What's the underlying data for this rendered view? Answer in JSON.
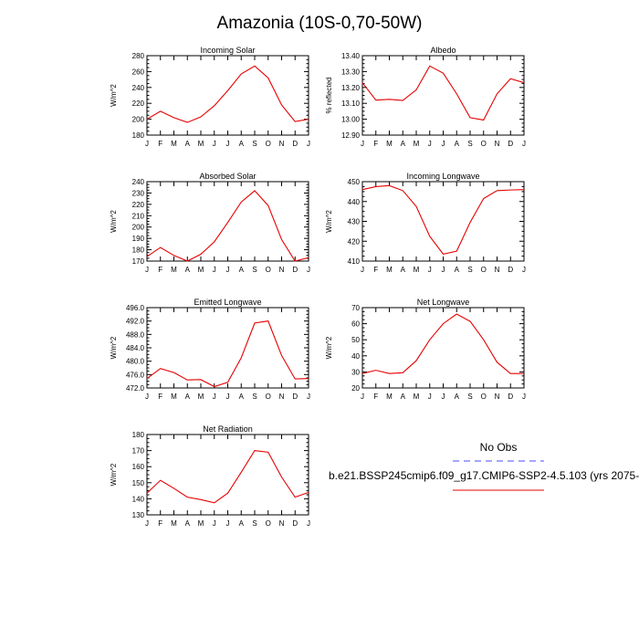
{
  "page": {
    "title": "Amazonia (10S-0,70-50W)"
  },
  "legend": {
    "title": "No Obs",
    "case_label": "b.e21.BSSP245cmip6.f09_g17.CMIP6-SSP2-4.5.103 (yrs 2075-",
    "obs_color": "#4b4bff",
    "model_color": "#e60000"
  },
  "chart_data": [
    {
      "type": "line",
      "title": "Incoming Solar",
      "ylabel": "W/m^2",
      "xlabel": "",
      "x": [
        "J",
        "F",
        "M",
        "A",
        "M",
        "J",
        "J",
        "A",
        "S",
        "O",
        "N",
        "D",
        "J"
      ],
      "ylim": [
        180,
        280
      ],
      "yticks": [
        180,
        200,
        220,
        240,
        260,
        280
      ],
      "ytick_labels": [
        "180",
        "200",
        "220",
        "240",
        "260",
        "280"
      ],
      "series": [
        {
          "values": [
            200,
            210,
            202,
            196,
            203,
            217,
            236,
            257,
            267,
            252,
            218,
            197,
            200
          ]
        }
      ]
    },
    {
      "type": "line",
      "title": "Albedo",
      "ylabel": "% reflected",
      "xlabel": "",
      "x": [
        "J",
        "F",
        "M",
        "A",
        "M",
        "J",
        "J",
        "A",
        "S",
        "O",
        "N",
        "D",
        "J"
      ],
      "ylim": [
        12.9,
        13.4
      ],
      "yticks": [
        12.9,
        13.0,
        13.1,
        13.2,
        13.3,
        13.4
      ],
      "ytick_labels": [
        "12.90",
        "13.00",
        "13.10",
        "13.20",
        "13.30",
        "13.40"
      ],
      "series": [
        {
          "values": [
            13.23,
            13.12,
            13.125,
            13.118,
            13.185,
            13.335,
            13.29,
            13.16,
            13.01,
            12.995,
            13.16,
            13.255,
            13.23
          ]
        }
      ]
    },
    {
      "type": "line",
      "title": "Absorbed Solar",
      "ylabel": "W/m^2",
      "xlabel": "",
      "x": [
        "J",
        "F",
        "M",
        "A",
        "M",
        "J",
        "J",
        "A",
        "S",
        "O",
        "N",
        "D",
        "J"
      ],
      "ylim": [
        170,
        240
      ],
      "yticks": [
        170,
        180,
        190,
        200,
        210,
        220,
        230,
        240
      ],
      "ytick_labels": [
        "170",
        "180",
        "190",
        "200",
        "210",
        "220",
        "230",
        "240"
      ],
      "series": [
        {
          "values": [
            174,
            182,
            175,
            170,
            176,
            187,
            204,
            222,
            232,
            219,
            189,
            170,
            173
          ]
        }
      ]
    },
    {
      "type": "line",
      "title": "Incoming Longwave",
      "ylabel": "W/m^2",
      "xlabel": "",
      "x": [
        "J",
        "F",
        "M",
        "A",
        "M",
        "J",
        "J",
        "A",
        "S",
        "O",
        "N",
        "D",
        "J"
      ],
      "ylim": [
        410,
        450
      ],
      "yticks": [
        410,
        420,
        430,
        440,
        450
      ],
      "ytick_labels": [
        "410",
        "420",
        "430",
        "440",
        "450"
      ],
      "series": [
        {
          "values": [
            446,
            447.5,
            448,
            445.5,
            437.5,
            422.5,
            413.5,
            415,
            429.5,
            441.5,
            445.5,
            445.8,
            446
          ]
        }
      ]
    },
    {
      "type": "line",
      "title": "Emitted Longwave",
      "ylabel": "W/m^2",
      "xlabel": "",
      "x": [
        "J",
        "F",
        "M",
        "A",
        "M",
        "J",
        "J",
        "A",
        "S",
        "O",
        "N",
        "D",
        "J"
      ],
      "ylim": [
        472,
        496
      ],
      "yticks": [
        472,
        476,
        480,
        484,
        488,
        492,
        496
      ],
      "ytick_labels": [
        "472.0",
        "476.0",
        "480.0",
        "484.0",
        "488.0",
        "492.0",
        "496.0"
      ],
      "series": [
        {
          "values": [
            474.8,
            477.8,
            476.6,
            474.4,
            474.5,
            472.4,
            473.7,
            481,
            491.4,
            492,
            481.7,
            474.7,
            474.8
          ]
        }
      ]
    },
    {
      "type": "line",
      "title": "Net Longwave",
      "ylabel": "W/m^2",
      "xlabel": "",
      "x": [
        "J",
        "F",
        "M",
        "A",
        "M",
        "J",
        "J",
        "A",
        "S",
        "O",
        "N",
        "D",
        "J"
      ],
      "ylim": [
        20,
        70
      ],
      "yticks": [
        20,
        30,
        40,
        50,
        60,
        70
      ],
      "ytick_labels": [
        "20",
        "30",
        "40",
        "50",
        "60",
        "70"
      ],
      "series": [
        {
          "values": [
            29,
            31,
            29,
            29.5,
            37,
            50,
            60,
            66,
            61.5,
            50,
            36,
            29,
            29
          ]
        }
      ]
    },
    {
      "type": "line",
      "title": "Net Radiation",
      "ylabel": "W/m^2",
      "xlabel": "",
      "x": [
        "J",
        "F",
        "M",
        "A",
        "M",
        "J",
        "J",
        "A",
        "S",
        "O",
        "N",
        "D",
        "J"
      ],
      "ylim": [
        130,
        180
      ],
      "yticks": [
        130,
        140,
        150,
        160,
        170,
        180
      ],
      "ytick_labels": [
        "130",
        "140",
        "150",
        "160",
        "170",
        "180"
      ],
      "series": [
        {
          "values": [
            143.5,
            151.5,
            146.5,
            141,
            139.5,
            137.5,
            143.5,
            156.5,
            170,
            169,
            153.5,
            141,
            144
          ]
        }
      ]
    }
  ]
}
